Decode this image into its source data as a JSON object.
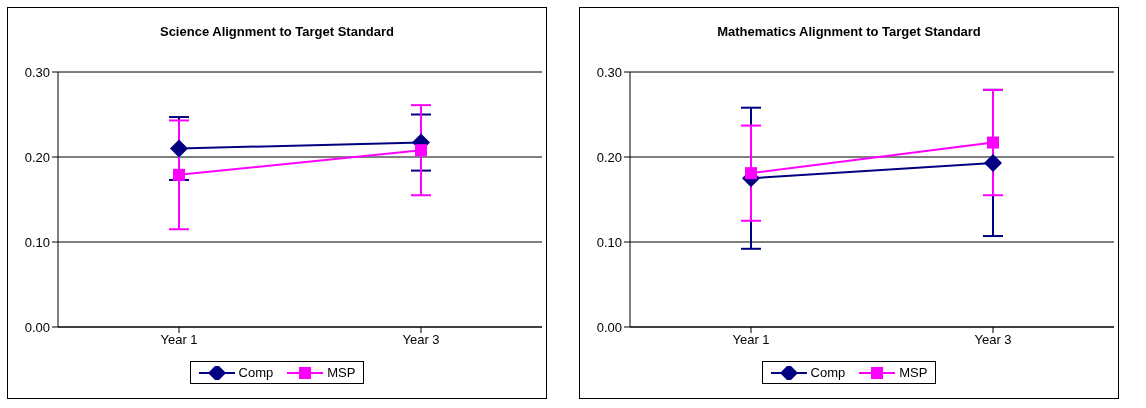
{
  "chart_data": [
    {
      "type": "line",
      "title": "Science Alignment to Target Standard",
      "categories": [
        "Year 1",
        "Year 3"
      ],
      "series": [
        {
          "name": "Comp",
          "color": "#000080",
          "marker": "diamond",
          "values": [
            0.21,
            0.217
          ],
          "errors": [
            0.037,
            0.033
          ]
        },
        {
          "name": "MSP",
          "color": "#ff00ff",
          "marker": "square",
          "values": [
            0.179,
            0.208
          ],
          "errors": [
            0.064,
            0.053
          ]
        }
      ],
      "ylim": [
        0,
        0.3
      ],
      "yticks": [
        {
          "value": 0,
          "label": "0.00"
        },
        {
          "value": 0.1,
          "label": "0.10"
        },
        {
          "value": 0.2,
          "label": "0.20"
        },
        {
          "value": 0.3,
          "label": "0.30"
        }
      ],
      "grid": "y",
      "legend": "bottom"
    },
    {
      "type": "line",
      "title": "Mathematics Alignment to Target Standard",
      "categories": [
        "Year 1",
        "Year 3"
      ],
      "series": [
        {
          "name": "Comp",
          "color": "#000080",
          "marker": "diamond",
          "values": [
            0.175,
            0.193
          ],
          "errors": [
            0.083,
            0.086
          ]
        },
        {
          "name": "MSP",
          "color": "#ff00ff",
          "marker": "square",
          "values": [
            0.181,
            0.217
          ],
          "errors": [
            0.056,
            0.062
          ]
        }
      ],
      "ylim": [
        0,
        0.3
      ],
      "yticks": [
        {
          "value": 0,
          "label": "0.00"
        },
        {
          "value": 0.1,
          "label": "0.10"
        },
        {
          "value": 0.2,
          "label": "0.20"
        },
        {
          "value": 0.3,
          "label": "0.30"
        }
      ],
      "grid": "y",
      "legend": "bottom"
    }
  ]
}
